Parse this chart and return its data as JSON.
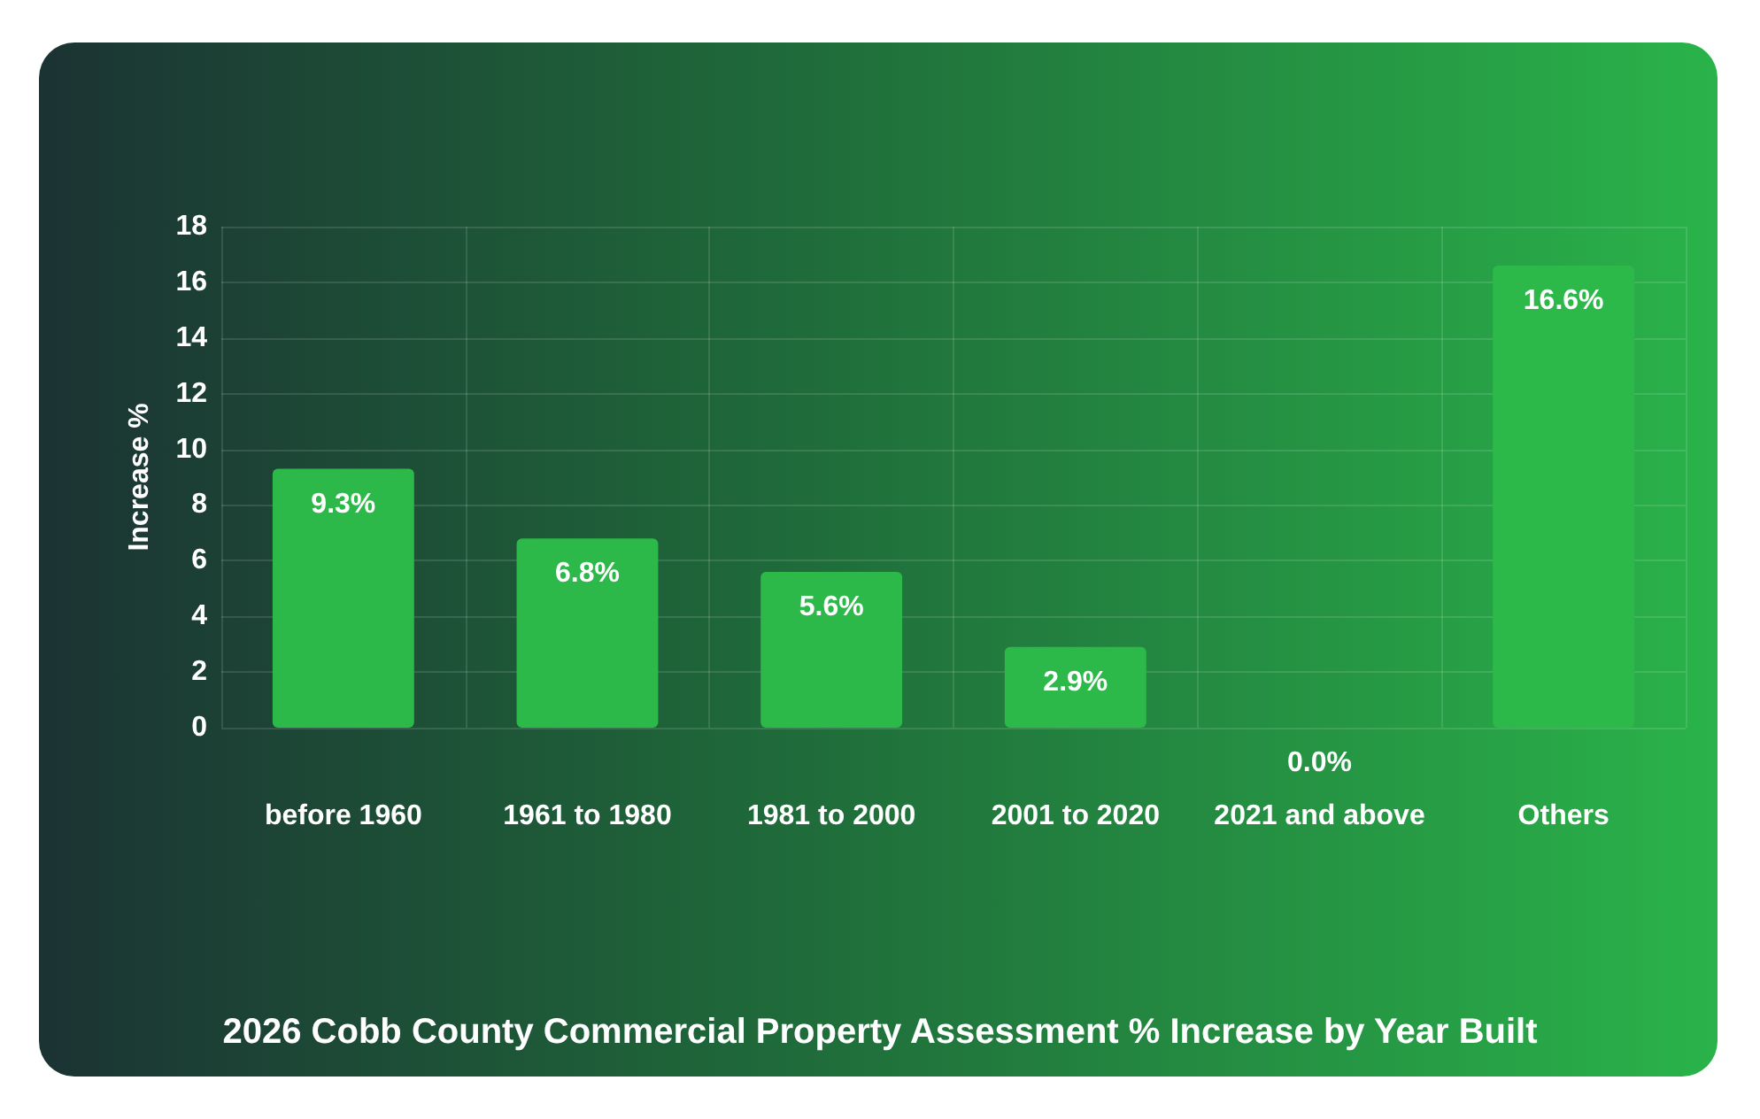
{
  "chart_data": {
    "type": "bar",
    "title": "2026 Cobb County Commercial Property Assessment % Increase by Year Built",
    "ylabel": "Increase %",
    "categories": [
      "before 1960",
      "1961 to 1980",
      "1981 to 2000",
      "2001 to 2020",
      "2021 and above",
      "Others"
    ],
    "values": [
      9.3,
      6.8,
      5.6,
      2.9,
      0.0,
      16.6
    ],
    "value_labels": [
      "9.3%",
      "6.8%",
      "5.6%",
      "2.9%",
      "0.0%",
      "16.6%"
    ],
    "color": "#2db84a",
    "ylim": [
      0,
      18
    ],
    "yticks": [
      0,
      2,
      4,
      6,
      8,
      10,
      12,
      14,
      16,
      18
    ],
    "grid": true
  }
}
